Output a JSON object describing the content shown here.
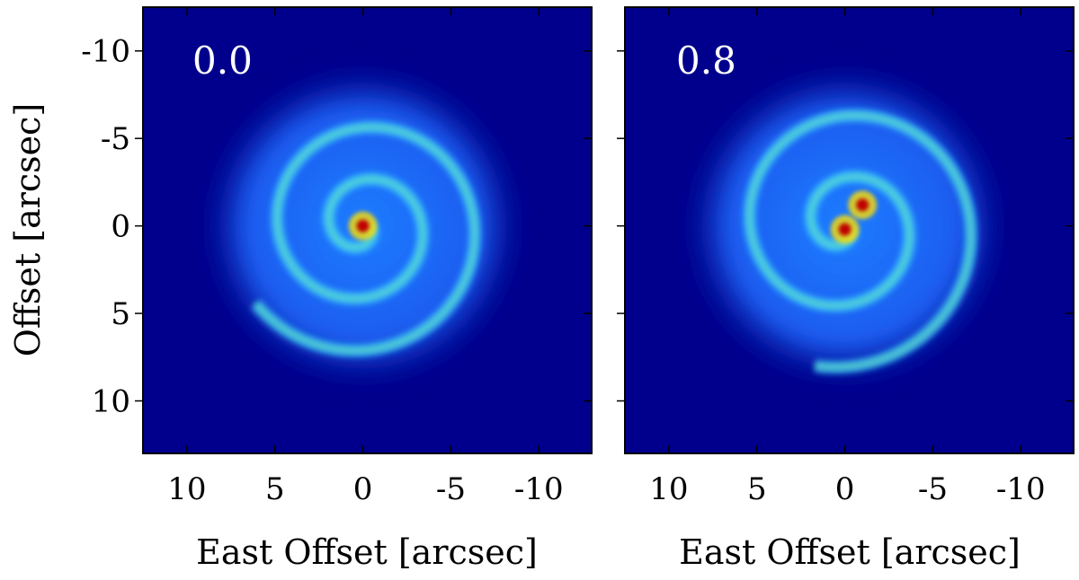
{
  "chart_data": [
    {
      "type": "heatmap",
      "panel_label": "0.0",
      "xlabel": "East Offset [arcsec]",
      "ylabel": "Offset [arcsec]",
      "xlim": [
        12.5,
        -13
      ],
      "ylim": [
        -12.5,
        13
      ],
      "x_ticks": [
        10,
        5,
        0,
        -5,
        -10
      ],
      "x_tick_labels": [
        "10",
        "5",
        "0",
        "-5",
        "-10"
      ],
      "y_ticks": [
        -10,
        -5,
        0,
        5,
        10
      ],
      "y_tick_labels": [
        "-10",
        "-5",
        "0",
        "5",
        "10"
      ],
      "colormap": "jet",
      "background_color": "#00008c",
      "features": {
        "halo_radius": 9.5,
        "peak_position": [
          0,
          0
        ],
        "spiral_arms": [
          {
            "start_angle_deg": 0,
            "turns": 2.4,
            "pitch": 1.35
          }
        ]
      }
    },
    {
      "type": "heatmap",
      "panel_label": "0.8",
      "xlabel": "East Offset [arcsec]",
      "ylabel": "",
      "xlim": [
        12.5,
        -13
      ],
      "ylim": [
        -12.5,
        13
      ],
      "x_ticks": [
        10,
        5,
        0,
        -5,
        -10
      ],
      "x_tick_labels": [
        "10",
        "5",
        "0",
        "-5",
        "-10"
      ],
      "y_ticks": [
        -10,
        -5,
        0,
        5,
        10
      ],
      "y_tick_labels": [],
      "colormap": "jet",
      "background_color": "#00008c",
      "features": {
        "halo_radius": 9.5,
        "peak_positions": [
          [
            0,
            0.2
          ],
          [
            -1.0,
            -1.2
          ]
        ],
        "spiral_arms": [
          {
            "start_angle_deg": 30,
            "turns": 2.2,
            "pitch": 1.6
          }
        ]
      }
    }
  ]
}
